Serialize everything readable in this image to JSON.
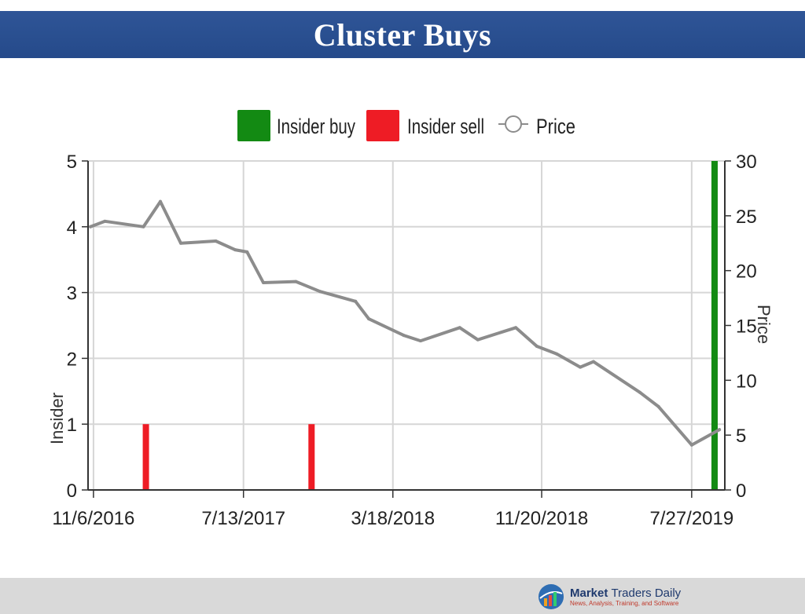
{
  "header": {
    "title": "Cluster Buys"
  },
  "legend": {
    "buy_label": "Insider buy",
    "sell_label": "Insider sell",
    "price_label": "Price"
  },
  "colors": {
    "buy": "#138a13",
    "sell": "#ee1c25",
    "price": "#8c8c8c",
    "banner": "#2f5597"
  },
  "footer": {
    "brand_bold": "Market",
    "brand_light": "Traders Daily",
    "tagline": "News, Analysis, Training, and Software"
  },
  "chart_data": {
    "type": "bar",
    "xlabel": "",
    "ylabel": "Insider",
    "y2label": "Price",
    "ylim": [
      0,
      5
    ],
    "y2lim": [
      0,
      30
    ],
    "yticks": [
      0,
      1,
      2,
      3,
      4,
      5
    ],
    "y2ticks": [
      0,
      5,
      10,
      15,
      20,
      25,
      30
    ],
    "xrange": [
      "2016-10-28",
      "2019-09-20"
    ],
    "xticks": [
      {
        "date": "2016-11-06",
        "label": "11/6/2016"
      },
      {
        "date": "2017-07-13",
        "label": "7/13/2017"
      },
      {
        "date": "2018-03-18",
        "label": "3/18/2018"
      },
      {
        "date": "2018-11-20",
        "label": "11/20/2018"
      },
      {
        "date": "2019-07-27",
        "label": "7/27/2019"
      }
    ],
    "grid": true,
    "legend_position": "top-center",
    "bars": [
      {
        "series": "Insider sell",
        "date": "2017-02-01",
        "value": 1
      },
      {
        "series": "Insider sell",
        "date": "2017-11-03",
        "value": 1
      },
      {
        "series": "Insider buy",
        "date": "2019-09-03",
        "value": 5
      }
    ],
    "price": [
      {
        "date": "2016-11-01",
        "value": 24.0
      },
      {
        "date": "2016-11-25",
        "value": 24.5
      },
      {
        "date": "2017-01-28",
        "value": 24.0
      },
      {
        "date": "2017-02-25",
        "value": 26.3
      },
      {
        "date": "2017-03-31",
        "value": 22.5
      },
      {
        "date": "2017-05-28",
        "value": 22.7
      },
      {
        "date": "2017-06-29",
        "value": 21.9
      },
      {
        "date": "2017-07-19",
        "value": 21.7
      },
      {
        "date": "2017-08-15",
        "value": 18.9
      },
      {
        "date": "2017-10-08",
        "value": 19.0
      },
      {
        "date": "2017-11-17",
        "value": 18.1
      },
      {
        "date": "2018-01-15",
        "value": 17.2
      },
      {
        "date": "2018-02-06",
        "value": 15.6
      },
      {
        "date": "2018-04-05",
        "value": 14.1
      },
      {
        "date": "2018-05-03",
        "value": 13.6
      },
      {
        "date": "2018-07-07",
        "value": 14.8
      },
      {
        "date": "2018-08-06",
        "value": 13.7
      },
      {
        "date": "2018-10-08",
        "value": 14.8
      },
      {
        "date": "2018-11-12",
        "value": 13.1
      },
      {
        "date": "2018-12-15",
        "value": 12.4
      },
      {
        "date": "2019-01-23",
        "value": 11.2
      },
      {
        "date": "2019-02-14",
        "value": 11.7
      },
      {
        "date": "2019-05-02",
        "value": 8.9
      },
      {
        "date": "2019-06-02",
        "value": 7.6
      },
      {
        "date": "2019-07-27",
        "value": 4.1
      },
      {
        "date": "2019-09-11",
        "value": 5.5
      }
    ]
  }
}
